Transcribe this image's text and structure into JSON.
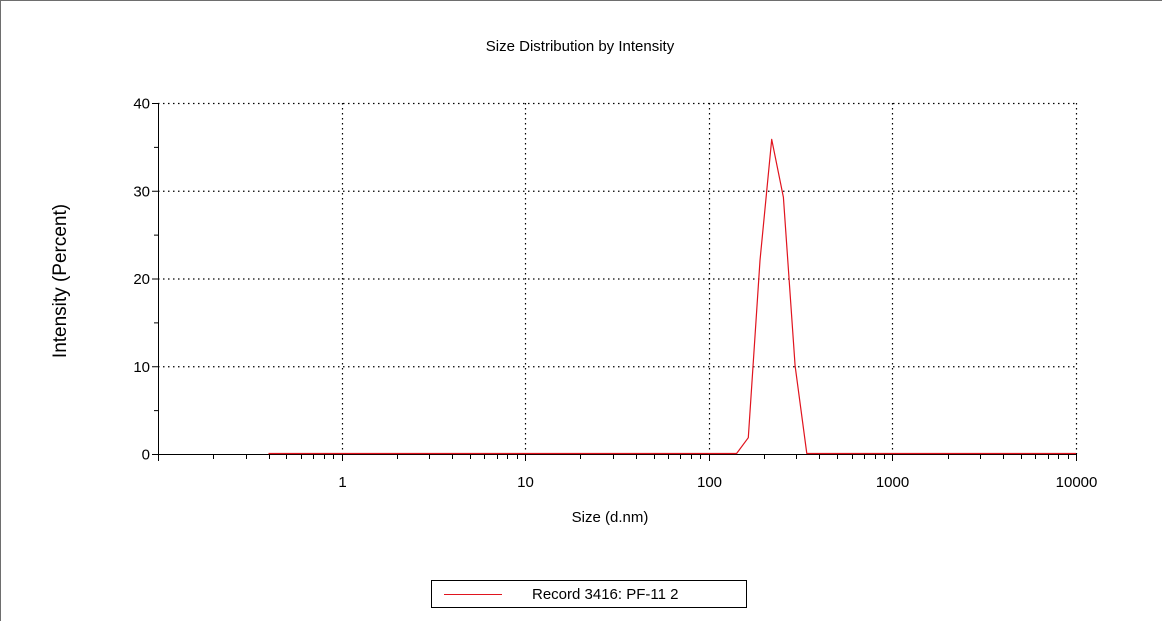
{
  "chart_data": {
    "type": "line",
    "title": "Size Distribution by Intensity",
    "xlabel": "Size (d.nm)",
    "ylabel": "Intensity (Percent)",
    "xscale": "log",
    "xlim": [
      0.1,
      10000
    ],
    "ylim": [
      0,
      40
    ],
    "x_tick_labels": [
      "1",
      "10",
      "100",
      "1000",
      "10000"
    ],
    "y_tick_labels": [
      "0",
      "10",
      "20",
      "30",
      "40"
    ],
    "grid": true,
    "legend_position": "bottom-center",
    "colors": {
      "series": "#e0141e",
      "grid": "#000000",
      "axis": "#000000"
    },
    "series": [
      {
        "name": "Record 3416: PF-11 2",
        "x": [
          0.4,
          1,
          10,
          100,
          141.8,
          164.2,
          190.1,
          220.2,
          255.0,
          295.3,
          342.0,
          396.1,
          1000,
          10000
        ],
        "y": [
          0,
          0,
          0,
          0,
          0,
          1.8,
          22.0,
          35.8,
          29.2,
          10.0,
          0,
          0,
          0,
          0
        ]
      }
    ]
  }
}
